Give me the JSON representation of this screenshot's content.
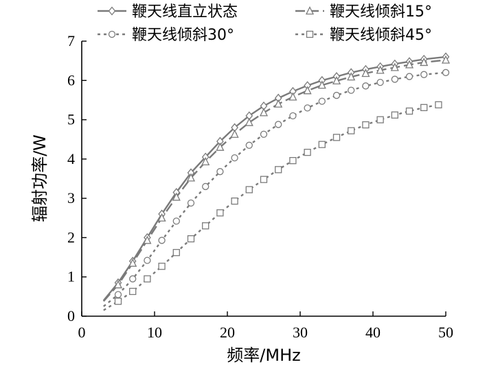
{
  "chart_data": {
    "type": "line",
    "xlabel": "频率/MHz",
    "ylabel": "辐射功率/W",
    "xlim": [
      0,
      50
    ],
    "ylim": [
      0,
      7
    ],
    "xticks": [
      "0",
      "10",
      "20",
      "30",
      "40",
      "50"
    ],
    "yticks": [
      "0",
      "1",
      "2",
      "3",
      "4",
      "5",
      "6",
      "7"
    ],
    "grid": false,
    "legend_position": "top",
    "series": [
      {
        "name": "鞭天线直立状态",
        "marker": "diamond",
        "color": "#7a7a7a",
        "dash": "solid",
        "x": [
          3,
          5,
          7,
          9,
          11,
          13,
          15,
          17,
          19,
          21,
          23,
          25,
          27,
          29,
          31,
          33,
          35,
          37,
          39,
          41,
          43,
          45,
          47,
          50
        ],
        "y": [
          0.4,
          0.85,
          1.4,
          2.0,
          2.6,
          3.15,
          3.65,
          4.05,
          4.45,
          4.8,
          5.1,
          5.35,
          5.55,
          5.72,
          5.87,
          6.0,
          6.1,
          6.2,
          6.28,
          6.35,
          6.42,
          6.48,
          6.54,
          6.6
        ]
      },
      {
        "name": "鞭天线倾斜15°",
        "marker": "triangle",
        "color": "#7a7a7a",
        "dash": "long-dash",
        "x": [
          3,
          5,
          7,
          9,
          11,
          13,
          15,
          17,
          19,
          21,
          23,
          25,
          27,
          29,
          31,
          33,
          35,
          37,
          39,
          41,
          43,
          45,
          47,
          50
        ],
        "y": [
          0.38,
          0.8,
          1.35,
          1.93,
          2.5,
          3.03,
          3.52,
          3.93,
          4.3,
          4.63,
          4.93,
          5.18,
          5.4,
          5.58,
          5.74,
          5.88,
          5.99,
          6.09,
          6.18,
          6.26,
          6.33,
          6.4,
          6.46,
          6.52
        ]
      },
      {
        "name": "鞭天线倾斜30°",
        "marker": "circle",
        "color": "#7a7a7a",
        "dash": "dotted",
        "x": [
          3,
          5,
          7,
          9,
          11,
          13,
          15,
          17,
          19,
          21,
          23,
          25,
          27,
          29,
          31,
          33,
          35,
          37,
          39,
          41,
          43,
          45,
          47,
          50
        ],
        "y": [
          0.25,
          0.55,
          0.95,
          1.42,
          1.93,
          2.42,
          2.88,
          3.3,
          3.68,
          4.03,
          4.35,
          4.63,
          4.88,
          5.1,
          5.3,
          5.47,
          5.62,
          5.75,
          5.86,
          5.95,
          6.03,
          6.1,
          6.15,
          6.2
        ]
      },
      {
        "name": "鞭天线倾斜45°",
        "marker": "square",
        "color": "#7a7a7a",
        "dash": "dotted",
        "x": [
          3,
          5,
          7,
          9,
          11,
          13,
          15,
          17,
          19,
          21,
          23,
          25,
          27,
          29,
          31,
          33,
          35,
          37,
          39,
          41,
          43,
          45,
          47,
          49
        ],
        "y": [
          0.15,
          0.38,
          0.63,
          0.95,
          1.27,
          1.62,
          1.97,
          2.3,
          2.63,
          2.93,
          3.22,
          3.48,
          3.73,
          3.96,
          4.17,
          4.37,
          4.55,
          4.72,
          4.87,
          5.0,
          5.12,
          5.22,
          5.31,
          5.38
        ]
      }
    ]
  }
}
